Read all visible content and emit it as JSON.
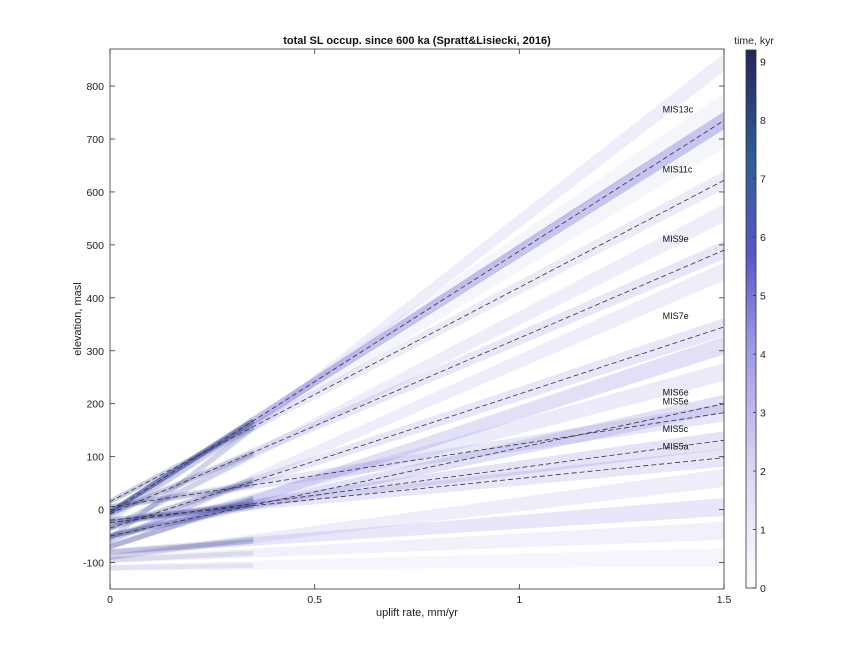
{
  "chart_data": {
    "type": "heatmap",
    "title": "total SL occup. since 600 ka (Spratt&Lisiecki, 2016)",
    "xlabel": "uplift rate, mm/yr",
    "ylabel": "elevation, masl",
    "xlim": [
      0,
      1.5
    ],
    "ylim": [
      -150,
      870
    ],
    "xticks": [
      {
        "value": 0,
        "label": "0"
      },
      {
        "value": 0.5,
        "label": "0.5"
      },
      {
        "value": 1,
        "label": "1"
      },
      {
        "value": 1.5,
        "label": "1.5"
      }
    ],
    "yticks": [
      {
        "value": -100,
        "label": "-100"
      },
      {
        "value": 0,
        "label": "0"
      },
      {
        "value": 100,
        "label": "100"
      },
      {
        "value": 200,
        "label": "200"
      },
      {
        "value": 300,
        "label": "300"
      },
      {
        "value": 400,
        "label": "400"
      },
      {
        "value": 500,
        "label": "500"
      },
      {
        "value": 600,
        "label": "600"
      },
      {
        "value": 700,
        "label": "700"
      },
      {
        "value": 800,
        "label": "800"
      }
    ],
    "colorbar": {
      "title": "time, kyr",
      "range": [
        0,
        9.2
      ],
      "ticks": [
        {
          "value": 0,
          "label": "0"
        },
        {
          "value": 1,
          "label": "1"
        },
        {
          "value": 2,
          "label": "2"
        },
        {
          "value": 3,
          "label": "3"
        },
        {
          "value": 4,
          "label": "4"
        },
        {
          "value": 5,
          "label": "5"
        },
        {
          "value": 6,
          "label": "6"
        },
        {
          "value": 7,
          "label": "7"
        },
        {
          "value": 8,
          "label": "8"
        },
        {
          "value": 9,
          "label": "9"
        }
      ],
      "colors": [
        "#ffffff",
        "#d9d7f4",
        "#9d98e4",
        "#5a57c8",
        "#2f5d96",
        "#26245a"
      ]
    },
    "reference_lines": [
      {
        "label": "MIS13c",
        "y0": -5,
        "y1": 735
      },
      {
        "label": "MIS11c",
        "y0": 15,
        "y1": 622
      },
      {
        "label": "MIS9e",
        "y0": -8,
        "y1": 490
      },
      {
        "label": "MIS7e",
        "y0": -35,
        "y1": 345
      },
      {
        "label": "MIS6e",
        "y0": -50,
        "y1": 200
      },
      {
        "label": "MIS5e",
        "y0": 5,
        "y1": 183
      },
      {
        "label": "MIS5c",
        "y0": -25,
        "y1": 131
      },
      {
        "label": "MIS5a",
        "y0": -20,
        "y1": 98
      }
    ],
    "occupation_bands": [
      {
        "y0": -5,
        "y1": 735,
        "intensity": 0.85
      },
      {
        "y0": -55,
        "y1": 845,
        "intensity": 0.25
      },
      {
        "y0": -20,
        "y1": 770,
        "intensity": 0.15
      },
      {
        "y0": 15,
        "y1": 622,
        "intensity": 0.3
      },
      {
        "y0": -10,
        "y1": 700,
        "intensity": 0.15
      },
      {
        "y0": -35,
        "y1": 560,
        "intensity": 0.25
      },
      {
        "y0": -8,
        "y1": 490,
        "intensity": 0.35
      },
      {
        "y0": -60,
        "y1": 450,
        "intensity": 0.25
      },
      {
        "y0": -35,
        "y1": 345,
        "intensity": 0.35
      },
      {
        "y0": -70,
        "y1": 310,
        "intensity": 0.45
      },
      {
        "y0": -50,
        "y1": 260,
        "intensity": 0.3
      },
      {
        "y0": -50,
        "y1": 200,
        "intensity": 0.45
      },
      {
        "y0": 5,
        "y1": 183,
        "intensity": 0.35
      },
      {
        "y0": -25,
        "y1": 131,
        "intensity": 0.4
      },
      {
        "y0": -20,
        "y1": 98,
        "intensity": 0.35
      },
      {
        "y0": -90,
        "y1": 60,
        "intensity": 0.25
      },
      {
        "y0": -80,
        "y1": 5,
        "intensity": 0.35
      },
      {
        "y0": -95,
        "y1": -40,
        "intensity": 0.2
      },
      {
        "y0": -110,
        "y1": -90,
        "intensity": 0.15
      }
    ]
  }
}
